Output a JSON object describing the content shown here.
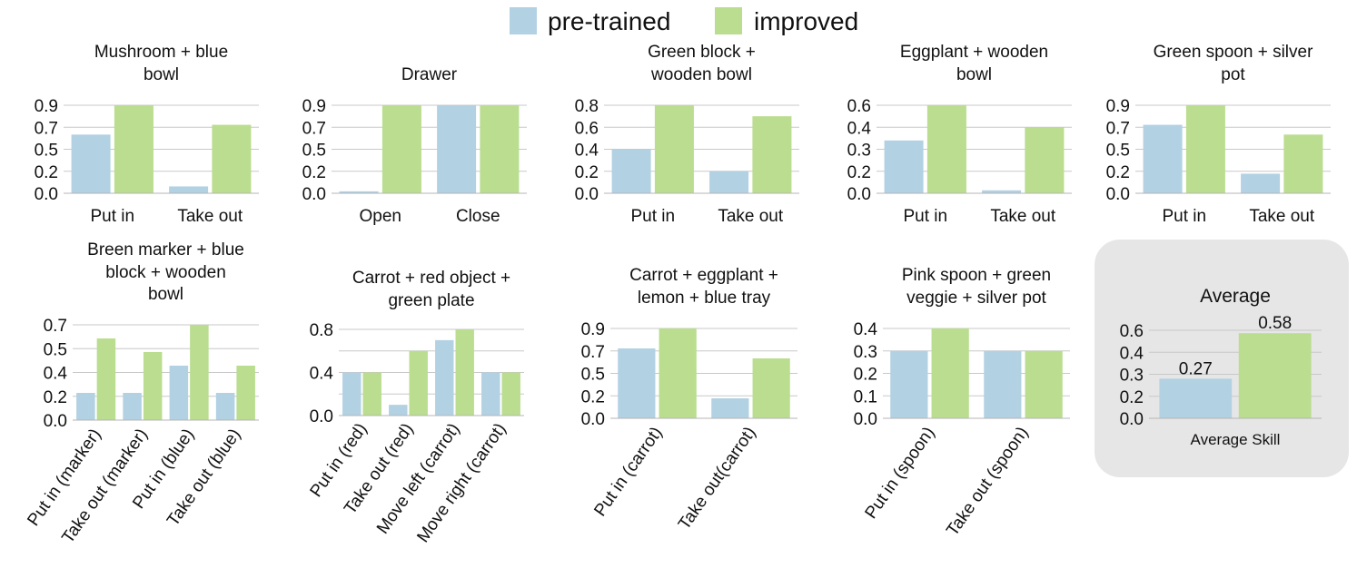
{
  "legend": {
    "items": [
      {
        "label": "pre-trained",
        "color": "#b2d1e3"
      },
      {
        "label": "improved",
        "color": "#badd8f"
      }
    ]
  },
  "colors": {
    "pretrained": "#b2d1e3",
    "improved": "#badd8f",
    "grid": "#c8c8c8",
    "avg_panel": "#e6e6e6"
  },
  "chart_data": [
    {
      "type": "bar",
      "title": [
        "Mushroom + blue",
        "bowl"
      ],
      "categories": [
        "Put in",
        "Take out"
      ],
      "series": [
        {
          "name": "pre-trained",
          "values": [
            0.6,
            0.07
          ]
        },
        {
          "name": "improved",
          "values": [
            0.9,
            0.7
          ]
        }
      ],
      "yticks": [
        "0.0",
        "0.2",
        "0.5",
        "0.7",
        "0.9"
      ],
      "ylim": [
        0,
        0.9
      ],
      "rotate_labels": false
    },
    {
      "type": "bar",
      "title": [
        "Drawer"
      ],
      "categories": [
        "Open",
        "Close"
      ],
      "series": [
        {
          "name": "pre-trained",
          "values": [
            0.02,
            0.9
          ]
        },
        {
          "name": "improved",
          "values": [
            0.9,
            0.9
          ]
        }
      ],
      "yticks": [
        "0.0",
        "0.2",
        "0.5",
        "0.7",
        "0.9"
      ],
      "ylim": [
        0,
        0.9
      ],
      "rotate_labels": false
    },
    {
      "type": "bar",
      "title": [
        "Green block +",
        "wooden bowl"
      ],
      "categories": [
        "Put in",
        "Take out"
      ],
      "series": [
        {
          "name": "pre-trained",
          "values": [
            0.4,
            0.2
          ]
        },
        {
          "name": "improved",
          "values": [
            0.8,
            0.7
          ]
        }
      ],
      "yticks": [
        "0.0",
        "0.2",
        "0.4",
        "0.6",
        "0.8"
      ],
      "ylim": [
        0,
        0.8
      ],
      "rotate_labels": false
    },
    {
      "type": "bar",
      "title": [
        "Eggplant + wooden",
        "bowl"
      ],
      "categories": [
        "Put in",
        "Take out"
      ],
      "series": [
        {
          "name": "pre-trained",
          "values": [
            0.36,
            0.02
          ]
        },
        {
          "name": "improved",
          "values": [
            0.6,
            0.45
          ]
        }
      ],
      "yticks": [
        "0.0",
        "0.2",
        "0.3",
        "0.4",
        "0.6"
      ],
      "ylim": [
        0,
        0.6
      ],
      "rotate_labels": false
    },
    {
      "type": "bar",
      "title": [
        "Green spoon + silver",
        "pot"
      ],
      "categories": [
        "Put in",
        "Take out"
      ],
      "series": [
        {
          "name": "pre-trained",
          "values": [
            0.7,
            0.2
          ]
        },
        {
          "name": "improved",
          "values": [
            0.9,
            0.6
          ]
        }
      ],
      "yticks": [
        "0.0",
        "0.2",
        "0.5",
        "0.7",
        "0.9"
      ],
      "ylim": [
        0,
        0.9
      ],
      "rotate_labels": false
    },
    {
      "type": "bar",
      "title": [
        "Breen marker + blue",
        "block + wooden",
        "bowl"
      ],
      "categories": [
        "Put in (marker)",
        "Take out (marker)",
        "Put in (blue)",
        "Take out (blue)"
      ],
      "series": [
        {
          "name": "pre-trained",
          "values": [
            0.2,
            0.2,
            0.4,
            0.2
          ]
        },
        {
          "name": "improved",
          "values": [
            0.6,
            0.5,
            0.7,
            0.4
          ]
        }
      ],
      "yticks": [
        "0.0",
        "0.2",
        "0.4",
        "0.5",
        "0.7"
      ],
      "ylim": [
        0,
        0.7
      ],
      "rotate_labels": true
    },
    {
      "type": "bar",
      "title": [
        "Carrot + red object +",
        "green plate"
      ],
      "categories": [
        "Put in (red)",
        "Take out (red)",
        "Move left (carrot)",
        "Move right (carrot)"
      ],
      "series": [
        {
          "name": "pre-trained",
          "values": [
            0.4,
            0.1,
            0.7,
            0.4
          ]
        },
        {
          "name": "improved",
          "values": [
            0.4,
            0.6,
            0.8,
            0.4
          ]
        }
      ],
      "yticks": [
        "0.0",
        "",
        "0.4",
        "",
        "0.8"
      ],
      "ylim": [
        0,
        0.8
      ],
      "rotate_labels": true
    },
    {
      "type": "bar",
      "title": [
        "Carrot + eggplant +",
        "lemon + blue tray"
      ],
      "categories": [
        "Put in (carrot)",
        "Take out(carrot)"
      ],
      "series": [
        {
          "name": "pre-trained",
          "values": [
            0.7,
            0.2
          ]
        },
        {
          "name": "improved",
          "values": [
            0.9,
            0.6
          ]
        }
      ],
      "yticks": [
        "0.0",
        "0.2",
        "0.5",
        "0.7",
        "0.9"
      ],
      "ylim": [
        0,
        0.9
      ],
      "rotate_labels": true
    },
    {
      "type": "bar",
      "title": [
        "Pink spoon + green",
        "veggie + silver pot"
      ],
      "categories": [
        "Put in (spoon)",
        "Take out (spoon)"
      ],
      "series": [
        {
          "name": "pre-trained",
          "values": [
            0.3,
            0.3
          ]
        },
        {
          "name": "improved",
          "values": [
            0.4,
            0.3
          ]
        }
      ],
      "yticks": [
        "0.0",
        "0.1",
        "0.2",
        "0.3",
        "0.4"
      ],
      "ylim": [
        0,
        0.4
      ],
      "rotate_labels": true
    },
    {
      "type": "bar",
      "title": [
        "Average"
      ],
      "categories": [
        "Average Skill"
      ],
      "series": [
        {
          "name": "pre-trained",
          "values": [
            0.27
          ]
        },
        {
          "name": "improved",
          "values": [
            0.58
          ]
        }
      ],
      "data_labels": [
        "0.27",
        "0.58"
      ],
      "yticks": [
        "0.0",
        "0.2",
        "0.3",
        "0.4",
        "0.6"
      ],
      "ylim": [
        0,
        0.6
      ],
      "rotate_labels": false
    }
  ]
}
